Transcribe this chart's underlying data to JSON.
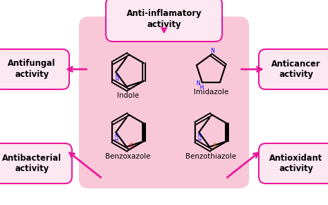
{
  "bg_color": "#ffffff",
  "center_box_color": "#f9c8d8",
  "outer_box_color": "#fce8f0",
  "arrow_color": "#e8189c",
  "text_color": "#000000",
  "figsize": [
    4.74,
    2.96
  ],
  "dpi": 100,
  "labels": {
    "top": "Anti-inflamatory\nactivity",
    "left_top": "Antifungal\nactivity",
    "right_top": "Anticancer\nactivity",
    "left_bot": "Antibacterial\nactivity",
    "right_bot": "Antioxidant\nactivity"
  },
  "mol_labels": [
    "Indole",
    "Imidazole",
    "Benzoxazole",
    "Benzothiazole"
  ]
}
